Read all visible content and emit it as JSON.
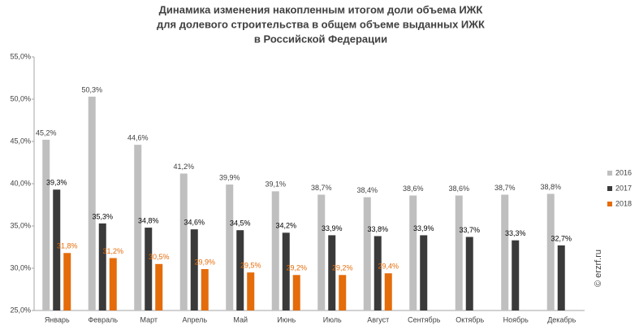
{
  "chart_data": {
    "type": "bar",
    "title": [
      "Динамика изменения накопленным итогом доли объема ИЖК",
      "для долевого строительства  в общем объеме выданных ИЖК",
      "в Российской  Федерации"
    ],
    "annotation": "© erzrf.ru",
    "categories": [
      "Январь",
      "Февраль",
      "Март",
      "Апрель",
      "Май",
      "Июнь",
      "Июль",
      "Август",
      "Сентябрь",
      "Октябрь",
      "Ноябрь",
      "Декабрь"
    ],
    "series": [
      {
        "name": "2016",
        "color": "#bfbfbf",
        "label_color": "#404040",
        "values": [
          45.2,
          50.3,
          44.6,
          41.2,
          39.9,
          39.1,
          38.7,
          38.4,
          38.6,
          38.6,
          38.7,
          38.8
        ],
        "value_labels": [
          "45,2%",
          "50,3%",
          "44,6%",
          "41,2%",
          "39,9%",
          "39,1%",
          "38,7%",
          "38,4%",
          "38,6%",
          "38,6%",
          "38,7%",
          "38,8%"
        ]
      },
      {
        "name": "2017",
        "color": "#3a3a3a",
        "label_color": "#000000",
        "values": [
          39.3,
          35.3,
          34.8,
          34.6,
          34.5,
          34.2,
          33.9,
          33.8,
          33.9,
          33.7,
          33.3,
          32.7
        ],
        "value_labels": [
          "39,3%",
          "35,3%",
          "34,8%",
          "34,6%",
          "34,5%",
          "34,2%",
          "33,9%",
          "33,8%",
          "33,9%",
          "33,7%",
          "33,3%",
          "32,7%"
        ]
      },
      {
        "name": "2018",
        "color": "#e46c0a",
        "label_color": "#e46c0a",
        "values": [
          31.8,
          31.2,
          30.5,
          29.9,
          29.5,
          29.2,
          29.2,
          29.4,
          null,
          null,
          null,
          null
        ],
        "value_labels": [
          "31,8%",
          "31,2%",
          "30,5%",
          "29,9%",
          "29,5%",
          "29,2%",
          "29,2%",
          "29,4%",
          null,
          null,
          null,
          null
        ]
      }
    ],
    "ylim": [
      25,
      55
    ],
    "yticks": [
      {
        "value": 25,
        "label": "25,0%"
      },
      {
        "value": 30,
        "label": "30,0%"
      },
      {
        "value": 35,
        "label": "35,0%"
      },
      {
        "value": 40,
        "label": "40,0%"
      },
      {
        "value": 45,
        "label": "45,0%"
      },
      {
        "value": 50,
        "label": "50,0%"
      },
      {
        "value": 55,
        "label": "55,0%"
      }
    ],
    "grid": false,
    "legend": "right"
  }
}
